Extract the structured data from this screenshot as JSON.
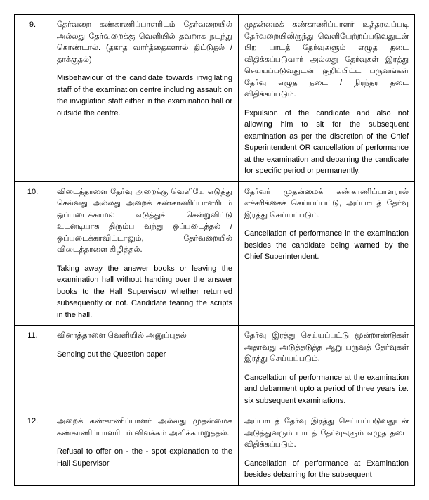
{
  "rows": [
    {
      "num": "9.",
      "desc_tamil": "தேர்வறை கண்காணிப்பாளரிடம் தேர்வறையில் அல்லது தேர்வறைக்கு வெளியில் தவறாக நடந்து கொண்டால். (தகாத வார்த்தைகளால் திட்டுதல் / தாக்குதல்)",
      "desc_en": "Misbehaviour of the candidate towards invigilating staff of the examination centre including assault on the invigilation staff either in the examination hall or outside the centre.",
      "action_tamil": "முதன்மைக் கண்காணிப்பாளர் உத்தரவுப்படி தேர்வறையிலிருந்து வெளியேற்றப்படுவதுடன் பிற பாடத் தேர்வுகளும் எழுத தடை விதிக்கப்படுவார் அல்லது தேர்வுகள் இரத்து செய்யப்படுவதுடன் குறிப்பிட்ட பருவங்கள் தேர்வு எழுத தடை / நிரந்தர தடை விதிக்கப்படும்.",
      "action_en": "Expulsion of the candidate and also not allowing him to sit for the subsequent examination as per the discretion of the Chief Superintendent OR cancellation of performance at the examination and debarring the candidate for specific period or permanently."
    },
    {
      "num": "10.",
      "desc_tamil": "விடைத்தாளை தேர்வு அறைக்கு வெளியே எடுத்து செல்வது அல்லது அறைக் கண்காணிப்பாளரிடம் ஒப்படைக்காமல் எடுத்துச் சென்றுவிட்டு உடனடியாக திரும்ப வந்து ஒப்படைத்தல் / ஒப்படைக்காவிட்டாலும், தேர்வறையில் விடைத்தாளை கிழித்தல்.",
      "desc_en": "Taking away the answer books or leaving the examination hall without handing over the answer books to the Hall Supervisor/ whether returned subsequently or not. Candidate tearing the scripts in the hall.",
      "action_tamil": "தேர்வர் முதன்மைக் கண்காணிப்பாளரால் எச்சரிக்கைச் செய்யப்பட்டு, அப்பாடத் தேர்வு இரத்து செய்யப்படும்.",
      "action_en": "Cancellation of performance in the examination besides the candidate being warned by the Chief Superintendent."
    },
    {
      "num": "11.",
      "desc_tamil": "வினாத்தாளை வெளியில் அனுப்புதல்",
      "desc_en": "Sending out the Question paper",
      "action_tamil": "தேர்வு இரத்து செய்யப்பட்டு மூன்றாண்டுகள் அதாவது அடுத்தடுத்த ஆறு பருவத் தேர்வுகள் இரத்து செய்யப்படும்.",
      "action_en": "Cancellation of performance at the examination and debarment upto a period of three years i.e. six subsequent examinations."
    },
    {
      "num": "12.",
      "desc_tamil": "அறைக் கண்காணிப்பாளர் அல்லது முதன்மைக் கண்காணிப்பாளரிடம் விளக்கம் அளிக்க மறுத்தல்.",
      "desc_en": "Refusal to offer on - the - spot explanation to the Hall Supervisor",
      "action_tamil": "அப்பாடத் தேர்வு இரத்து செய்யப்படுவதுடன் அடுத்துவரும் பாடத் தேர்வுகளும் எழுத தடை விதிக்கப்படும்.",
      "action_en": "Cancellation of performance at Examination besides debarring for the subsequent"
    }
  ]
}
